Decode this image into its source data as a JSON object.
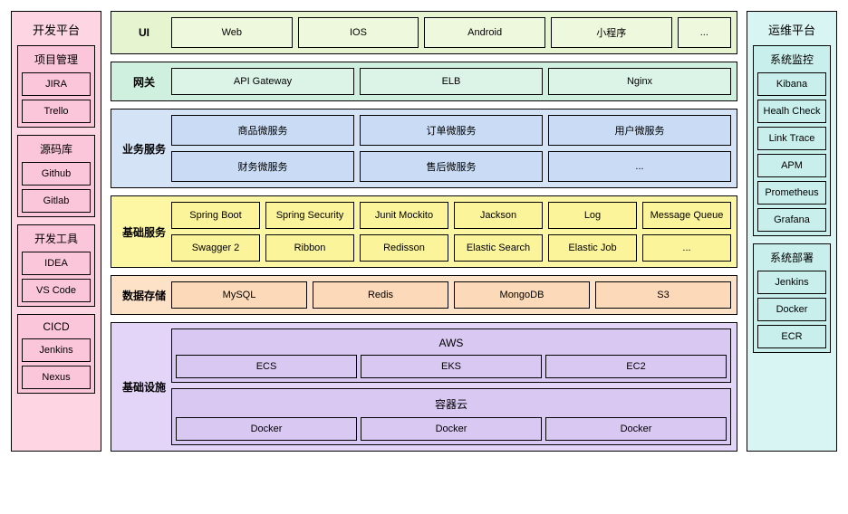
{
  "left": {
    "title": "开发平台",
    "bg": "pink",
    "groups": [
      {
        "title": "项目管理",
        "items": [
          "JIRA",
          "Trello"
        ]
      },
      {
        "title": "源码库",
        "items": [
          "Github",
          "Gitlab"
        ]
      },
      {
        "title": "开发工具",
        "items": [
          "IDEA",
          "VS Code"
        ]
      },
      {
        "title": "CICD",
        "items": [
          "Jenkins",
          "Nexus"
        ]
      }
    ]
  },
  "right": {
    "title": "运维平台",
    "bg": "cyan",
    "groups": [
      {
        "title": "系统监控",
        "items": [
          "Kibana",
          "Healh Check",
          "Link Trace",
          "APM",
          "Prometheus",
          "Grafana"
        ]
      },
      {
        "title": "系统部署",
        "items": [
          "Jenkins",
          "Docker",
          "ECR"
        ]
      }
    ]
  },
  "layers": [
    {
      "label": "UI",
      "bg": "green1",
      "cellbg": "cell-green1",
      "rows": [
        [
          "Web",
          "IOS",
          "Android",
          "小程序",
          "..."
        ]
      ]
    },
    {
      "label": "网关",
      "bg": "green2",
      "cellbg": "cell-green2",
      "rows": [
        [
          "API Gateway",
          "ELB",
          "Nginx"
        ]
      ]
    },
    {
      "label": "业务服务",
      "bg": "blue",
      "cellbg": "cell-blue",
      "rows": [
        [
          "商品微服务",
          "订单微服务",
          "用户微服务"
        ],
        [
          "财务微服务",
          "售后微服务",
          "..."
        ]
      ]
    },
    {
      "label": "基础服务",
      "bg": "yellow",
      "cellbg": "cell-yellow",
      "rows": [
        [
          "Spring Boot",
          "Spring Security",
          "Junit Mockito",
          "Jackson",
          "Log",
          "Message Queue"
        ],
        [
          "Swagger 2",
          "Ribbon",
          "Redisson",
          "Elastic Search",
          "Elastic Job",
          "..."
        ]
      ]
    },
    {
      "label": "数据存储",
      "bg": "peach",
      "cellbg": "cell-peach",
      "rows": [
        [
          "MySQL",
          "Redis",
          "MongoDB",
          "S3"
        ]
      ]
    },
    {
      "label": "基础设施",
      "bg": "purple",
      "cellbg": "cell-purple",
      "type": "infra",
      "blocks": [
        {
          "title": "AWS",
          "items": [
            "ECS",
            "EKS",
            "EC2"
          ]
        },
        {
          "title": "容器云",
          "items": [
            "Docker",
            "Docker",
            "Docker"
          ]
        }
      ]
    }
  ]
}
